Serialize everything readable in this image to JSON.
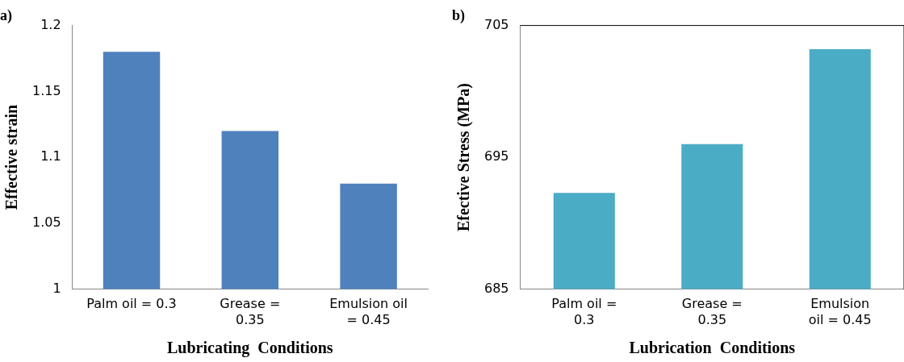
{
  "chart_data": [
    {
      "type": "bar",
      "title": "a)",
      "xlabel": "Lubricating  Conditions",
      "ylabel": "Effective strain",
      "categories": [
        "Palm oil = 0.3",
        "Grease = 0.35",
        "Emulsion oil = 0.45"
      ],
      "series": [
        {
          "color": "#4f81bd",
          "values": [
            1.18,
            1.12,
            1.08
          ]
        }
      ],
      "ylim": [
        1,
        1.2
      ],
      "yticks": [
        1,
        1.05,
        1.1,
        1.15,
        1.2
      ],
      "grid": false,
      "legend": false
    },
    {
      "type": "bar",
      "title": "b)",
      "xlabel": "Lubrication  Conditions",
      "ylabel": "Efective Stress (MPa)",
      "categories": [
        "Palm oil = 0.3",
        "Grease = 0.35",
        "Emulsion oil = 0.45"
      ],
      "series": [
        {
          "color": "#4bacc6",
          "values": [
            692.3,
            696,
            703.2
          ]
        }
      ],
      "ylim": [
        685,
        705
      ],
      "yticks": [
        685,
        695,
        705
      ],
      "grid": false,
      "legend": false
    }
  ]
}
